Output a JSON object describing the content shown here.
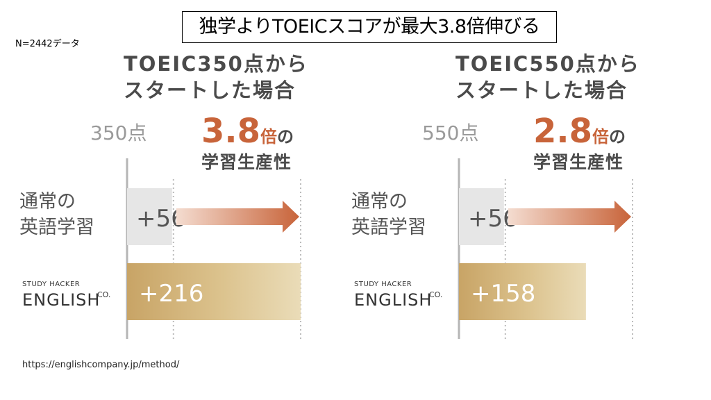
{
  "header": {
    "sample_note": "N=2442データ",
    "headline": "独学よりTOEICスコアが最大3.8倍伸びる"
  },
  "footer": {
    "source_url": "https://englishcompany.jp/method/"
  },
  "colors": {
    "gray_bar": "#e6e6e6",
    "gold_light": "#eadcb8",
    "gold_dark": "#c8a466",
    "accent": "#c8643a",
    "title_text": "#4a4a4a",
    "muted_text": "#9a9a9a"
  },
  "chart_data": [
    {
      "type": "bar",
      "title": [
        "TOEIC350点から",
        "スタートした場合"
      ],
      "start_score_label": "350点",
      "multiplier_value": "3.8",
      "multiplier_unit": "倍",
      "multiplier_suffix": "の",
      "multiplier_caption": "学習生産性",
      "categories": [
        [
          "通常の",
          "英語学習"
        ],
        "STUDY HACKER ENGLISH CO."
      ],
      "values": [
        56,
        216
      ],
      "value_labels": [
        "+56",
        "+216"
      ],
      "brand": {
        "top": "STUDY HACKER",
        "main": "ENGLISH",
        "sup": "CO."
      }
    },
    {
      "type": "bar",
      "title": [
        "TOEIC550点から",
        "スタートした場合"
      ],
      "start_score_label": "550点",
      "multiplier_value": "2.8",
      "multiplier_unit": "倍",
      "multiplier_suffix": "の",
      "multiplier_caption": "学習生産性",
      "categories": [
        [
          "通常の",
          "英語学習"
        ],
        "STUDY HACKER ENGLISH CO."
      ],
      "values": [
        56,
        158
      ],
      "value_labels": [
        "+56",
        "+158"
      ],
      "brand": {
        "top": "STUDY HACKER",
        "main": "ENGLISH",
        "sup": "CO."
      }
    }
  ]
}
